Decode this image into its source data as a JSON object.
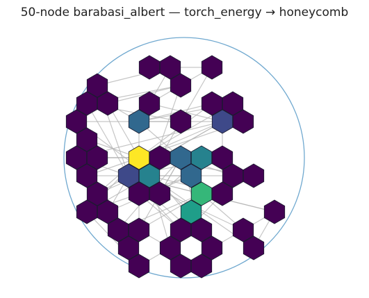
{
  "figure": {
    "title": "50-node barabasi_albert — torch_energy → honeycomb"
  },
  "colors": {
    "boundary": "#6fa8cf",
    "edge": "#b3b3b3",
    "node_stroke": "#1a1a2e",
    "colormap": [
      "#440154",
      "#482878",
      "#3e4989",
      "#31688e",
      "#26828e",
      "#1f9e89",
      "#35b779",
      "#6ece58",
      "#b5de2b",
      "#fde725"
    ]
  },
  "nodes": [
    {
      "id": 0,
      "energy": 0.0
    },
    {
      "id": 1,
      "energy": 0.02
    },
    {
      "id": 2,
      "energy": 0.0
    },
    {
      "id": 3,
      "energy": 0.05
    },
    {
      "id": 4,
      "energy": 0.0
    },
    {
      "id": 5,
      "energy": 0.0
    },
    {
      "id": 6,
      "energy": 0.04
    },
    {
      "id": 7,
      "energy": 0.03
    },
    {
      "id": 8,
      "energy": 0.0
    },
    {
      "id": 9,
      "energy": 0.0
    },
    {
      "id": 10,
      "energy": 0.0
    },
    {
      "id": 11,
      "energy": 0.05
    },
    {
      "id": 12,
      "energy": 0.0
    },
    {
      "id": 13,
      "energy": 0.38
    },
    {
      "id": 14,
      "energy": 0.0
    },
    {
      "id": 15,
      "energy": 0.22
    },
    {
      "id": 16,
      "energy": 0.0
    },
    {
      "id": 17,
      "energy": 0.03
    },
    {
      "id": 18,
      "energy": 0.0
    },
    {
      "id": 19,
      "energy": 0.0
    },
    {
      "id": 20,
      "energy": 1.0
    },
    {
      "id": 21,
      "energy": 0.03
    },
    {
      "id": 22,
      "energy": 0.3
    },
    {
      "id": 23,
      "energy": 0.48
    },
    {
      "id": 24,
      "energy": 0.0
    },
    {
      "id": 25,
      "energy": 0.02
    },
    {
      "id": 26,
      "energy": 0.45
    },
    {
      "id": 27,
      "energy": 0.22
    },
    {
      "id": 28,
      "energy": 0.0
    },
    {
      "id": 29,
      "energy": 0.28
    },
    {
      "id": 30,
      "energy": 0.02
    },
    {
      "id": 31,
      "energy": 0.0
    },
    {
      "id": 32,
      "energy": 0.0
    },
    {
      "id": 33,
      "energy": 0.0
    },
    {
      "id": 34,
      "energy": 0.7
    },
    {
      "id": 35,
      "energy": 0.0
    },
    {
      "id": 36,
      "energy": 0.0
    },
    {
      "id": 37,
      "energy": 0.55
    },
    {
      "id": 38,
      "energy": 0.0
    },
    {
      "id": 39,
      "energy": 0.0
    },
    {
      "id": 40,
      "energy": 0.05
    },
    {
      "id": 41,
      "energy": 0.0
    },
    {
      "id": 42,
      "energy": 0.0
    },
    {
      "id": 43,
      "energy": 0.0
    },
    {
      "id": 44,
      "energy": 0.05
    },
    {
      "id": 45,
      "energy": 0.0
    },
    {
      "id": 46,
      "energy": 0.0
    },
    {
      "id": 47,
      "energy": 0.04
    },
    {
      "id": 48,
      "energy": 0.0
    },
    {
      "id": 49,
      "energy": 0.0
    }
  ],
  "edges": [
    [
      20,
      21
    ],
    [
      20,
      22
    ],
    [
      20,
      23
    ],
    [
      20,
      26
    ],
    [
      20,
      13
    ],
    [
      20,
      17
    ],
    [
      20,
      16
    ],
    [
      20,
      25
    ],
    [
      20,
      28
    ],
    [
      20,
      30
    ],
    [
      20,
      31
    ],
    [
      20,
      33
    ],
    [
      20,
      14
    ],
    [
      20,
      15
    ],
    [
      20,
      8
    ],
    [
      20,
      9
    ],
    [
      20,
      12
    ],
    [
      20,
      35
    ],
    [
      20,
      41
    ],
    [
      20,
      39
    ],
    [
      27,
      26
    ],
    [
      27,
      22
    ],
    [
      27,
      16
    ],
    [
      27,
      5
    ],
    [
      27,
      4
    ],
    [
      27,
      28
    ],
    [
      27,
      34
    ],
    [
      27,
      36
    ],
    [
      27,
      40
    ],
    [
      27,
      42
    ],
    [
      27,
      45
    ],
    [
      27,
      30
    ],
    [
      27,
      19
    ],
    [
      27,
      15
    ],
    [
      26,
      22
    ],
    [
      26,
      29
    ],
    [
      26,
      3
    ],
    [
      26,
      6
    ],
    [
      26,
      2
    ],
    [
      26,
      32
    ],
    [
      26,
      37
    ],
    [
      26,
      46
    ],
    [
      26,
      44
    ],
    [
      26,
      10
    ],
    [
      13,
      1
    ],
    [
      13,
      8
    ],
    [
      13,
      9
    ],
    [
      13,
      6
    ],
    [
      13,
      11
    ],
    [
      13,
      22
    ],
    [
      22,
      29
    ],
    [
      22,
      28
    ],
    [
      22,
      24
    ],
    [
      22,
      33
    ],
    [
      22,
      31
    ],
    [
      22,
      38
    ],
    [
      22,
      43
    ],
    [
      22,
      41
    ],
    [
      15,
      16
    ],
    [
      15,
      18
    ],
    [
      15,
      19
    ],
    [
      15,
      7
    ],
    [
      29,
      34
    ],
    [
      29,
      35
    ],
    [
      29,
      33
    ],
    [
      29,
      37
    ],
    [
      34,
      37
    ],
    [
      34,
      36
    ],
    [
      34,
      39
    ],
    [
      34,
      42
    ],
    [
      34,
      38
    ],
    [
      37,
      40
    ],
    [
      37,
      44
    ],
    [
      37,
      45
    ],
    [
      37,
      41
    ],
    [
      23,
      31
    ],
    [
      23,
      24
    ],
    [
      23,
      18
    ],
    [
      1,
      0
    ],
    [
      1,
      4
    ],
    [
      0,
      2
    ],
    [
      2,
      7
    ],
    [
      3,
      5
    ],
    [
      3,
      6
    ],
    [
      6,
      10
    ],
    [
      5,
      11
    ],
    [
      8,
      9
    ],
    [
      10,
      12
    ],
    [
      14,
      17
    ],
    [
      17,
      19
    ],
    [
      21,
      25
    ],
    [
      25,
      32
    ],
    [
      30,
      40
    ],
    [
      32,
      44
    ],
    [
      33,
      47
    ],
    [
      36,
      48
    ],
    [
      38,
      43
    ],
    [
      39,
      49
    ],
    [
      41,
      47
    ],
    [
      42,
      46
    ],
    [
      44,
      48
    ],
    [
      45,
      49
    ],
    [
      46,
      36
    ],
    [
      43,
      47
    ]
  ]
}
